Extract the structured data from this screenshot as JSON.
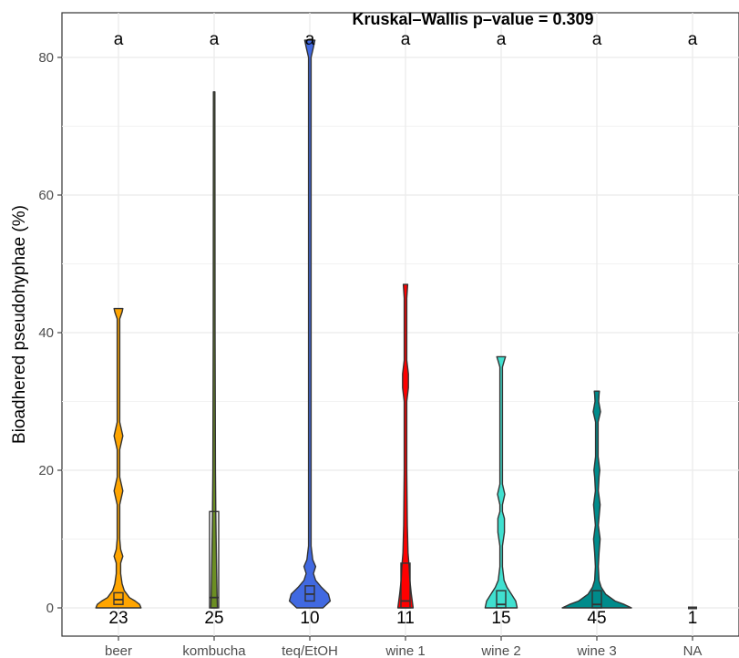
{
  "chart_data": {
    "type": "violin",
    "title": "Kruskal–Wallis p–value = 0.309",
    "xlabel": "",
    "ylabel": "Bioadhered pseudohyphae (%)",
    "ylim": [
      -4,
      86
    ],
    "yticks": [
      0,
      20,
      40,
      60,
      80
    ],
    "grid": true,
    "legend": "none",
    "categories": [
      "beer",
      "kombucha",
      "teq/EtOH",
      "wine 1",
      "wine 2",
      "wine 3",
      "NA"
    ],
    "series": [
      {
        "category": "beer",
        "color": "#FFA500",
        "n": "23",
        "letter": "a",
        "max": 43.5,
        "q1": 0.5,
        "median": 1.2,
        "q3": 2.2,
        "profile": [
          [
            0,
            6.2
          ],
          [
            0.5,
            5.8
          ],
          [
            1,
            4.6
          ],
          [
            1.5,
            3.0
          ],
          [
            2.5,
            1.6
          ],
          [
            3.5,
            1.0
          ],
          [
            5,
            0.6
          ],
          [
            6.5,
            0.6
          ],
          [
            7.5,
            1.2
          ],
          [
            8.5,
            0.6
          ],
          [
            10,
            0.35
          ],
          [
            15,
            0.35
          ],
          [
            17,
            1.2
          ],
          [
            19,
            0.35
          ],
          [
            23,
            0.35
          ],
          [
            25,
            1.2
          ],
          [
            27,
            0.35
          ],
          [
            42,
            0.35
          ],
          [
            43,
            1.0
          ],
          [
            43.5,
            1.2
          ]
        ]
      },
      {
        "category": "kombucha",
        "color": "#6B8E23",
        "n": "25",
        "letter": "a",
        "max": 75,
        "q1": 0,
        "median": 1.5,
        "q3": 14,
        "profile": [
          [
            0,
            0.9
          ],
          [
            2,
            0.8
          ],
          [
            5,
            0.7
          ],
          [
            10,
            0.55
          ],
          [
            14,
            0.45
          ],
          [
            20,
            0.35
          ],
          [
            40,
            0.25
          ],
          [
            60,
            0.22
          ],
          [
            75,
            0.2
          ]
        ]
      },
      {
        "category": "teq/EtOH",
        "color": "#4169E1",
        "n": "10",
        "letter": "a",
        "max": 82.5,
        "q1": 1.0,
        "median": 2.0,
        "q3": 3.2,
        "profile": [
          [
            0,
            3.6
          ],
          [
            1,
            5.6
          ],
          [
            2,
            5.1
          ],
          [
            3,
            3.2
          ],
          [
            4,
            1.6
          ],
          [
            5,
            1.0
          ],
          [
            6,
            1.6
          ],
          [
            7,
            0.8
          ],
          [
            9,
            0.35
          ],
          [
            80,
            0.35
          ],
          [
            81.5,
            1.0
          ],
          [
            82.5,
            1.4
          ]
        ]
      },
      {
        "category": "wine 1",
        "color": "#FF0000",
        "n": "11",
        "letter": "a",
        "max": 47,
        "q1": 0,
        "median": 1.0,
        "q3": 6.5,
        "profile": [
          [
            0,
            2.1
          ],
          [
            2,
            1.6
          ],
          [
            4,
            1.2
          ],
          [
            6,
            1.0
          ],
          [
            8,
            0.7
          ],
          [
            12,
            0.5
          ],
          [
            20,
            0.35
          ],
          [
            30,
            0.35
          ],
          [
            32,
            0.8
          ],
          [
            34,
            0.8
          ],
          [
            36,
            0.35
          ],
          [
            45,
            0.35
          ],
          [
            47,
            0.6
          ]
        ]
      },
      {
        "category": "wine 2",
        "color": "#40E0D0",
        "n": "15",
        "letter": "a",
        "max": 36.5,
        "q1": 0,
        "median": 0.5,
        "q3": 2.5,
        "profile": [
          [
            0,
            4.4
          ],
          [
            1,
            4.0
          ],
          [
            2,
            2.8
          ],
          [
            3,
            1.6
          ],
          [
            4,
            0.8
          ],
          [
            6,
            0.35
          ],
          [
            9,
            0.35
          ],
          [
            11,
            0.9
          ],
          [
            13,
            0.9
          ],
          [
            14,
            0.35
          ],
          [
            15,
            0.35
          ],
          [
            16.5,
            1.0
          ],
          [
            18,
            0.35
          ],
          [
            35,
            0.35
          ],
          [
            36,
            0.9
          ],
          [
            36.5,
            1.2
          ]
        ]
      },
      {
        "category": "wine 3",
        "color": "#008B8B",
        "n": "45",
        "letter": "a",
        "max": 31.5,
        "q1": 0,
        "median": 0.5,
        "q3": 2.5,
        "profile": [
          [
            0,
            9.5
          ],
          [
            0.5,
            7.5
          ],
          [
            1,
            5.0
          ],
          [
            2,
            2.4
          ],
          [
            3,
            1.2
          ],
          [
            4,
            0.6
          ],
          [
            6,
            0.4
          ],
          [
            8,
            0.6
          ],
          [
            10,
            0.9
          ],
          [
            12,
            0.4
          ],
          [
            15,
            0.9
          ],
          [
            17,
            0.4
          ],
          [
            19,
            0.6
          ],
          [
            20,
            0.8
          ],
          [
            22,
            0.35
          ],
          [
            27,
            0.35
          ],
          [
            28.5,
            1.0
          ],
          [
            30,
            0.5
          ],
          [
            31,
            0.6
          ],
          [
            31.5,
            0.7
          ]
        ]
      },
      {
        "category": "NA",
        "color": "#000000",
        "n": "1",
        "letter": "a",
        "max": 0,
        "q1": 0,
        "median": 0,
        "q3": 0,
        "profile": []
      }
    ]
  }
}
